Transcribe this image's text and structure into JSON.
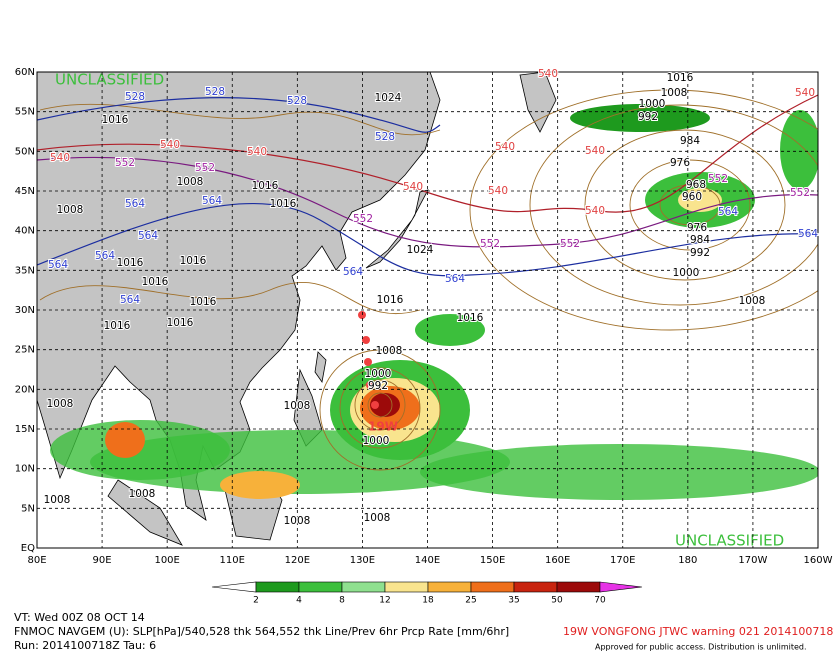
{
  "watermarks": [
    "UNCLASSIFIED",
    "UNCLASSIFIED"
  ],
  "map": {
    "lat_labels": [
      "60N",
      "55N",
      "50N",
      "45N",
      "40N",
      "35N",
      "30N",
      "25N",
      "20N",
      "15N",
      "10N",
      "5N",
      "EQ"
    ],
    "lon_labels": [
      "80E",
      "90E",
      "100E",
      "110E",
      "120E",
      "130E",
      "140E",
      "150E",
      "160E",
      "170E",
      "180",
      "170W",
      "160W"
    ]
  },
  "contour_labels": [
    "528",
    "528",
    "528",
    "528",
    "564",
    "564",
    "564",
    "564",
    "564",
    "564",
    "564",
    "564",
    "564",
    "564",
    "552",
    "552",
    "552",
    "552",
    "552",
    "552",
    "552",
    "540",
    "540",
    "540",
    "540",
    "540",
    "540",
    "540",
    "540",
    "540",
    "540",
    "1016",
    "1016",
    "1016",
    "1016",
    "1016",
    "1016",
    "1016",
    "1016",
    "1016",
    "1016",
    "1008",
    "1008",
    "1008",
    "1008",
    "1008",
    "1008",
    "1008",
    "1008",
    "1008",
    "1008",
    "1024",
    "1016",
    "1016",
    "1000",
    "992",
    "984",
    "976",
    "968",
    "960",
    "976",
    "984",
    "992",
    "1000",
    "1000",
    "992",
    "1000",
    "1024",
    "1008"
  ],
  "storm_label": "19W",
  "colorbar": {
    "ticks": [
      2,
      4,
      8,
      12,
      18,
      25,
      35,
      50,
      70
    ],
    "colors": [
      "#1e9a1e",
      "#3cbf3c",
      "#8fe08f",
      "#f9e48e",
      "#f7b13a",
      "#ef6f1b",
      "#c8240f",
      "#9c0a0a"
    ],
    "low_color": "#ffffff",
    "high_color": "#e633e6"
  },
  "footer": {
    "valid": "VT: Wed 00Z 08 OCT 14",
    "model": "FNMOC NAVGEM (U): SLP[hPa]/540,528 thk 564,552 thk Line/Prev 6hr Prcp Rate [mm/6hr]",
    "run": "Run: 2014100718Z Tau: 6",
    "warning": "19W VONGFONG JTWC warning 021 2014100718",
    "approved": "Approved for public access. Distribution is unlimited."
  }
}
